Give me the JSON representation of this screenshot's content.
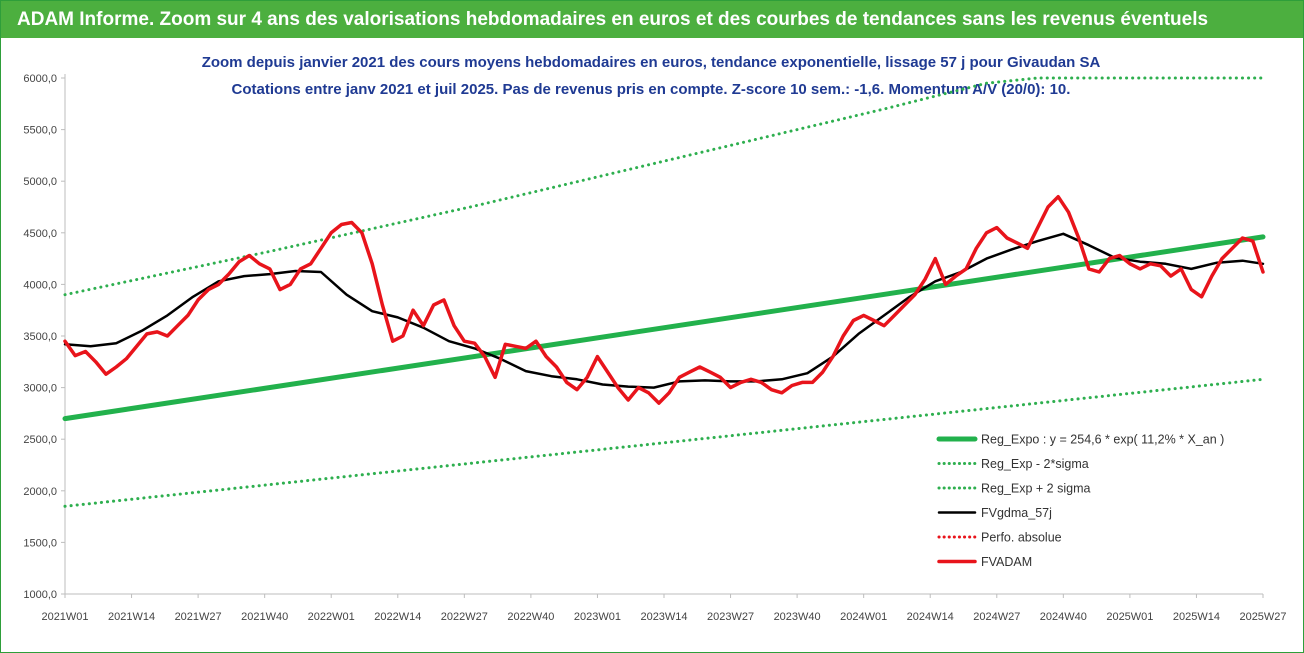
{
  "banner": {
    "title": "ADAM Informe. Zoom sur 4 ans des valorisations hebdomadaires en euros et des courbes de tendances sans les revenus éventuels"
  },
  "colors": {
    "banner_bg": "#4caf3f",
    "title_text": "#1f3a93",
    "trend_green": "#22b14c",
    "band_green": "#2eaf4f",
    "price_red": "#e8141b",
    "smooth_black": "#000000",
    "perfo_red": "#e8141b"
  },
  "chart_data": {
    "type": "line",
    "title": "Zoom depuis janvier 2021 des cours moyens hebdomadaires en euros, tendance exponentielle, lissage 57 j pour Givaudan SA",
    "subtitle": "Cotations entre janv 2021 et juil 2025. Pas de revenus pris en compte. Z-score 10 sem.: -1,6. Momentum A/V (20/0): 10.",
    "xlabel": "",
    "ylabel": "",
    "ylim": [
      1000,
      6000
    ],
    "yticks": [
      "1000,0",
      "1500,0",
      "2000,0",
      "2500,0",
      "3000,0",
      "3500,0",
      "4000,0",
      "4500,0",
      "5000,0",
      "5500,0",
      "6000,0"
    ],
    "xlim": [
      0,
      234
    ],
    "xticks": [
      {
        "x": 0,
        "label": "2021W01"
      },
      {
        "x": 13,
        "label": "2021W14"
      },
      {
        "x": 26,
        "label": "2021W27"
      },
      {
        "x": 39,
        "label": "2021W40"
      },
      {
        "x": 52,
        "label": "2022W01"
      },
      {
        "x": 65,
        "label": "2022W14"
      },
      {
        "x": 78,
        "label": "2022W27"
      },
      {
        "x": 91,
        "label": "2022W40"
      },
      {
        "x": 104,
        "label": "2023W01"
      },
      {
        "x": 117,
        "label": "2023W14"
      },
      {
        "x": 130,
        "label": "2023W27"
      },
      {
        "x": 143,
        "label": "2023W40"
      },
      {
        "x": 156,
        "label": "2024W01"
      },
      {
        "x": 169,
        "label": "2024W14"
      },
      {
        "x": 182,
        "label": "2024W27"
      },
      {
        "x": 195,
        "label": "2024W40"
      },
      {
        "x": 208,
        "label": "2025W01"
      },
      {
        "x": 221,
        "label": "2025W14"
      },
      {
        "x": 234,
        "label": "2025W27"
      }
    ],
    "grid": false,
    "legend_position": "bottom-right",
    "series": [
      {
        "name": "Reg_Expo : y = 254,6 * exp( 11,2% *  X_an )",
        "style": "solid-thick",
        "color": "#22b14c",
        "x": [
          0,
          234
        ],
        "y": [
          2700,
          4460
        ]
      },
      {
        "name": "Reg_Exp - 2*sigma",
        "style": "dotted",
        "color": "#2eaf4f",
        "x": [
          0,
          234
        ],
        "y": [
          1850,
          3080
        ]
      },
      {
        "name": "Reg_Exp + 2 sigma",
        "style": "dotted",
        "color": "#2eaf4f",
        "x": [
          0,
          40,
          80,
          120,
          160,
          180,
          190,
          234
        ],
        "y": [
          3900,
          4320,
          4760,
          5230,
          5700,
          5950,
          6000,
          6000
        ]
      },
      {
        "name": "FVgdma_57j",
        "style": "solid",
        "color": "#000000",
        "x": [
          0,
          5,
          10,
          15,
          20,
          25,
          30,
          35,
          40,
          45,
          50,
          55,
          60,
          65,
          70,
          75,
          80,
          85,
          90,
          95,
          100,
          105,
          110,
          115,
          120,
          125,
          130,
          135,
          140,
          145,
          150,
          155,
          160,
          165,
          170,
          175,
          180,
          185,
          190,
          195,
          200,
          205,
          210,
          215,
          220,
          225,
          230,
          234
        ],
        "y": [
          3420,
          3400,
          3430,
          3550,
          3700,
          3880,
          4030,
          4080,
          4100,
          4130,
          4120,
          3900,
          3740,
          3680,
          3580,
          3450,
          3380,
          3280,
          3160,
          3110,
          3080,
          3030,
          3010,
          3000,
          3060,
          3070,
          3060,
          3060,
          3080,
          3140,
          3300,
          3520,
          3700,
          3880,
          4030,
          4120,
          4250,
          4340,
          4420,
          4490,
          4380,
          4260,
          4220,
          4200,
          4150,
          4210,
          4230,
          4200
        ]
      },
      {
        "name": "Perfo. absolue",
        "style": "dotted",
        "color": "#e8141b",
        "x": [],
        "y": []
      },
      {
        "name": "FVADAM",
        "style": "solid-thick",
        "color": "#e8141b",
        "x": [
          0,
          2,
          4,
          6,
          8,
          10,
          12,
          14,
          16,
          18,
          20,
          22,
          24,
          26,
          28,
          30,
          32,
          34,
          36,
          38,
          40,
          42,
          44,
          46,
          48,
          50,
          52,
          54,
          56,
          58,
          60,
          62,
          64,
          66,
          68,
          70,
          72,
          74,
          76,
          78,
          80,
          82,
          84,
          86,
          88,
          90,
          92,
          94,
          96,
          98,
          100,
          102,
          104,
          106,
          108,
          110,
          112,
          114,
          116,
          118,
          120,
          122,
          124,
          126,
          128,
          130,
          132,
          134,
          136,
          138,
          140,
          142,
          144,
          146,
          148,
          150,
          152,
          154,
          156,
          158,
          160,
          162,
          164,
          166,
          168,
          170,
          172,
          174,
          176,
          178,
          180,
          182,
          184,
          186,
          188,
          190,
          192,
          194,
          196,
          198,
          200,
          202,
          204,
          206,
          208,
          210,
          212,
          214,
          216,
          218,
          220,
          222,
          224,
          226,
          228,
          230,
          232,
          234
        ],
        "y": [
          3450,
          3310,
          3350,
          3250,
          3130,
          3200,
          3280,
          3400,
          3520,
          3540,
          3500,
          3600,
          3700,
          3850,
          3950,
          4000,
          4100,
          4220,
          4280,
          4200,
          4150,
          3950,
          4000,
          4150,
          4200,
          4350,
          4500,
          4580,
          4600,
          4500,
          4200,
          3800,
          3450,
          3500,
          3750,
          3600,
          3800,
          3850,
          3600,
          3450,
          3430,
          3300,
          3100,
          3420,
          3400,
          3380,
          3450,
          3300,
          3200,
          3050,
          2980,
          3100,
          3300,
          3150,
          3000,
          2880,
          3000,
          2950,
          2850,
          2950,
          3100,
          3150,
          3200,
          3150,
          3100,
          3000,
          3050,
          3080,
          3050,
          2980,
          2950,
          3020,
          3050,
          3050,
          3150,
          3300,
          3500,
          3650,
          3700,
          3650,
          3600,
          3700,
          3800,
          3900,
          4050,
          4250,
          4000,
          4080,
          4150,
          4350,
          4500,
          4550,
          4450,
          4400,
          4350,
          4550,
          4750,
          4850,
          4700,
          4450,
          4150,
          4120,
          4250,
          4280,
          4200,
          4150,
          4200,
          4180,
          4080,
          4150,
          3950,
          3880,
          4080,
          4250,
          4350,
          4450,
          4420,
          4120
        ]
      }
    ]
  }
}
